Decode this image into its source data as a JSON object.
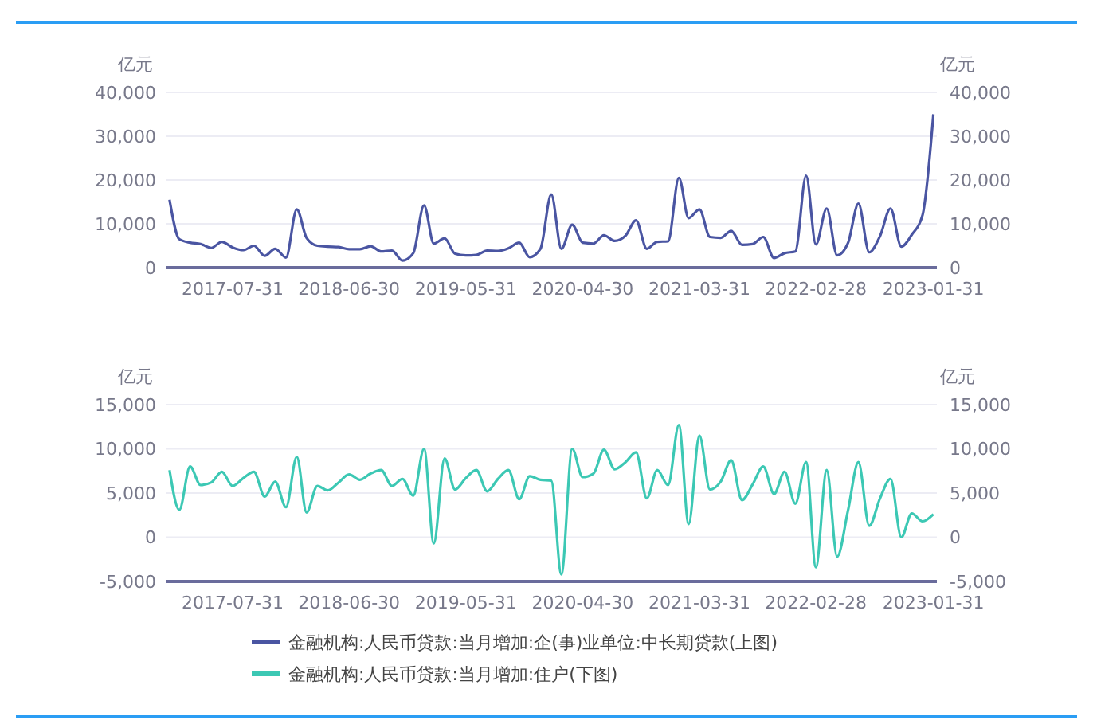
{
  "chart_data": [
    {
      "type": "line",
      "ylabel": "亿元",
      "y2label": "亿元",
      "x": [
        "2017-01-31",
        "2017-02-28",
        "2017-03-31",
        "2017-04-30",
        "2017-05-31",
        "2017-06-30",
        "2017-07-31",
        "2017-08-31",
        "2017-09-30",
        "2017-10-31",
        "2017-11-30",
        "2017-12-31",
        "2018-01-31",
        "2018-02-28",
        "2018-03-31",
        "2018-04-30",
        "2018-05-31",
        "2018-06-30",
        "2018-07-31",
        "2018-08-31",
        "2018-09-30",
        "2018-10-31",
        "2018-11-30",
        "2018-12-31",
        "2019-01-31",
        "2019-02-28",
        "2019-03-31",
        "2019-04-30",
        "2019-05-31",
        "2019-06-30",
        "2019-07-31",
        "2019-08-31",
        "2019-09-30",
        "2019-10-31",
        "2019-11-30",
        "2019-12-31",
        "2020-01-31",
        "2020-02-29",
        "2020-03-31",
        "2020-04-30",
        "2020-05-31",
        "2020-06-30",
        "2020-07-31",
        "2020-08-31",
        "2020-09-30",
        "2020-10-31",
        "2020-11-30",
        "2020-12-31",
        "2021-01-31",
        "2021-02-28",
        "2021-03-31",
        "2021-04-30",
        "2021-05-31",
        "2021-06-30",
        "2021-07-31",
        "2021-08-31",
        "2021-09-30",
        "2021-10-31",
        "2021-11-30",
        "2021-12-31",
        "2022-01-31",
        "2022-02-28",
        "2022-03-31",
        "2022-04-30",
        "2022-05-31",
        "2022-06-30",
        "2022-07-31",
        "2022-08-31",
        "2022-09-30",
        "2022-10-31",
        "2022-11-30",
        "2022-12-31",
        "2023-01-31"
      ],
      "series": [
        {
          "name": "金融机构:人民币贷款:当月增加:企(事)业单位:中长期贷款(上图)",
          "color": "#4a55a2",
          "values": [
            15500,
            6500,
            5700,
            5400,
            4500,
            5900,
            4600,
            4000,
            5000,
            2700,
            4300,
            2300,
            13300,
            6800,
            5000,
            4800,
            4700,
            4200,
            4200,
            4900,
            3700,
            3900,
            1600,
            3300,
            14200,
            5500,
            6700,
            3200,
            2800,
            2900,
            3900,
            3800,
            4400,
            5700,
            2400,
            4300,
            16700,
            4300,
            9800,
            5700,
            5500,
            7400,
            6100,
            7300,
            10800,
            4300,
            5900,
            6000,
            20500,
            11300,
            13300,
            7000,
            6800,
            8400,
            5200,
            5400,
            7000,
            2200,
            3300,
            3700,
            21000,
            5300,
            13500,
            2800,
            5600,
            14600,
            3500,
            7200,
            13500,
            4800,
            7500,
            12000,
            35000
          ]
        }
      ],
      "xlim": [
        "2017-01-20",
        "2023-02-10"
      ],
      "xticks": [
        "2017-07-31",
        "2018-06-30",
        "2019-05-31",
        "2020-04-30",
        "2021-03-31",
        "2022-02-28",
        "2023-01-31"
      ],
      "ylim": [
        0,
        40000
      ],
      "yticks": [
        0,
        {
          "value": 10000,
          "label": "10,000"
        },
        {
          "value": 20000,
          "label": "20,000"
        },
        {
          "value": 30000,
          "label": "30,000"
        },
        {
          "value": 40000,
          "label": "40,000"
        }
      ],
      "y2lim": [
        0,
        40000
      ],
      "y2ticks": [
        0,
        {
          "value": 10000,
          "label": "10,000"
        },
        {
          "value": 20000,
          "label": "20,000"
        },
        {
          "value": 30000,
          "label": "30,000"
        },
        {
          "value": 40000,
          "label": "40,000"
        }
      ],
      "grid": "y",
      "legend": "bottom",
      "marker": "none",
      "line_style": "solid"
    },
    {
      "type": "line",
      "ylabel": "亿元",
      "y2label": "亿元",
      "x": [
        "2017-01-31",
        "2017-02-28",
        "2017-03-31",
        "2017-04-30",
        "2017-05-31",
        "2017-06-30",
        "2017-07-31",
        "2017-08-31",
        "2017-09-30",
        "2017-10-31",
        "2017-11-30",
        "2017-12-31",
        "2018-01-31",
        "2018-02-28",
        "2018-03-31",
        "2018-04-30",
        "2018-05-31",
        "2018-06-30",
        "2018-07-31",
        "2018-08-31",
        "2018-09-30",
        "2018-10-31",
        "2018-11-30",
        "2018-12-31",
        "2019-01-31",
        "2019-02-28",
        "2019-03-31",
        "2019-04-30",
        "2019-05-31",
        "2019-06-30",
        "2019-07-31",
        "2019-08-31",
        "2019-09-30",
        "2019-10-31",
        "2019-11-30",
        "2019-12-31",
        "2020-01-31",
        "2020-02-29",
        "2020-03-31",
        "2020-04-30",
        "2020-05-31",
        "2020-06-30",
        "2020-07-31",
        "2020-08-31",
        "2020-09-30",
        "2020-10-31",
        "2020-11-30",
        "2020-12-31",
        "2021-01-31",
        "2021-02-28",
        "2021-03-31",
        "2021-04-30",
        "2021-05-31",
        "2021-06-30",
        "2021-07-31",
        "2021-08-31",
        "2021-09-30",
        "2021-10-31",
        "2021-11-30",
        "2021-12-31",
        "2022-01-31",
        "2022-02-28",
        "2022-03-31",
        "2022-04-30",
        "2022-05-31",
        "2022-06-30",
        "2022-07-31",
        "2022-08-31",
        "2022-09-30",
        "2022-10-31",
        "2022-11-30",
        "2022-12-31",
        "2023-01-31"
      ],
      "series": [
        {
          "name": "金融机构:人民币贷款:当月增加:住户(下图)",
          "color": "#3cc8b4",
          "values": [
            7600,
            3100,
            8000,
            5900,
            6200,
            7400,
            5800,
            6700,
            7400,
            4600,
            6300,
            3400,
            9100,
            2800,
            5800,
            5300,
            6200,
            7100,
            6500,
            7200,
            7600,
            5800,
            6600,
            4700,
            10000,
            -700,
            8900,
            5400,
            6700,
            7600,
            5200,
            6600,
            7600,
            4300,
            6900,
            6500,
            6400,
            -4200,
            10000,
            6800,
            7200,
            9900,
            7700,
            8500,
            9600,
            4400,
            7600,
            5900,
            12700,
            1500,
            11500,
            5400,
            6300,
            8700,
            4200,
            6000,
            8000,
            4900,
            7400,
            3800,
            8500,
            -3400,
            7600,
            -2200,
            3000,
            8500,
            1300,
            4400,
            6600,
            0,
            2700,
            1800,
            2600
          ]
        }
      ],
      "xlim": [
        "2017-01-20",
        "2023-02-10"
      ],
      "xticks": [
        "2017-07-31",
        "2018-06-30",
        "2019-05-31",
        "2020-04-30",
        "2021-03-31",
        "2022-02-28",
        "2023-01-31"
      ],
      "ylim": [
        -5000,
        15000
      ],
      "yticks": [
        {
          "value": -5000,
          "label": "-5,000"
        },
        0,
        {
          "value": 5000,
          "label": "5,000"
        },
        {
          "value": 10000,
          "label": "10,000"
        },
        {
          "value": 15000,
          "label": "15,000"
        }
      ],
      "y2lim": [
        -5000,
        15000
      ],
      "y2ticks": [
        {
          "value": -5000,
          "label": "-5,000"
        },
        0,
        {
          "value": 5000,
          "label": "5,000"
        },
        {
          "value": 10000,
          "label": "10,000"
        },
        {
          "value": 15000,
          "label": "15,000"
        }
      ],
      "grid": "y",
      "legend": "bottom",
      "marker": "none",
      "line_style": "solid"
    }
  ]
}
